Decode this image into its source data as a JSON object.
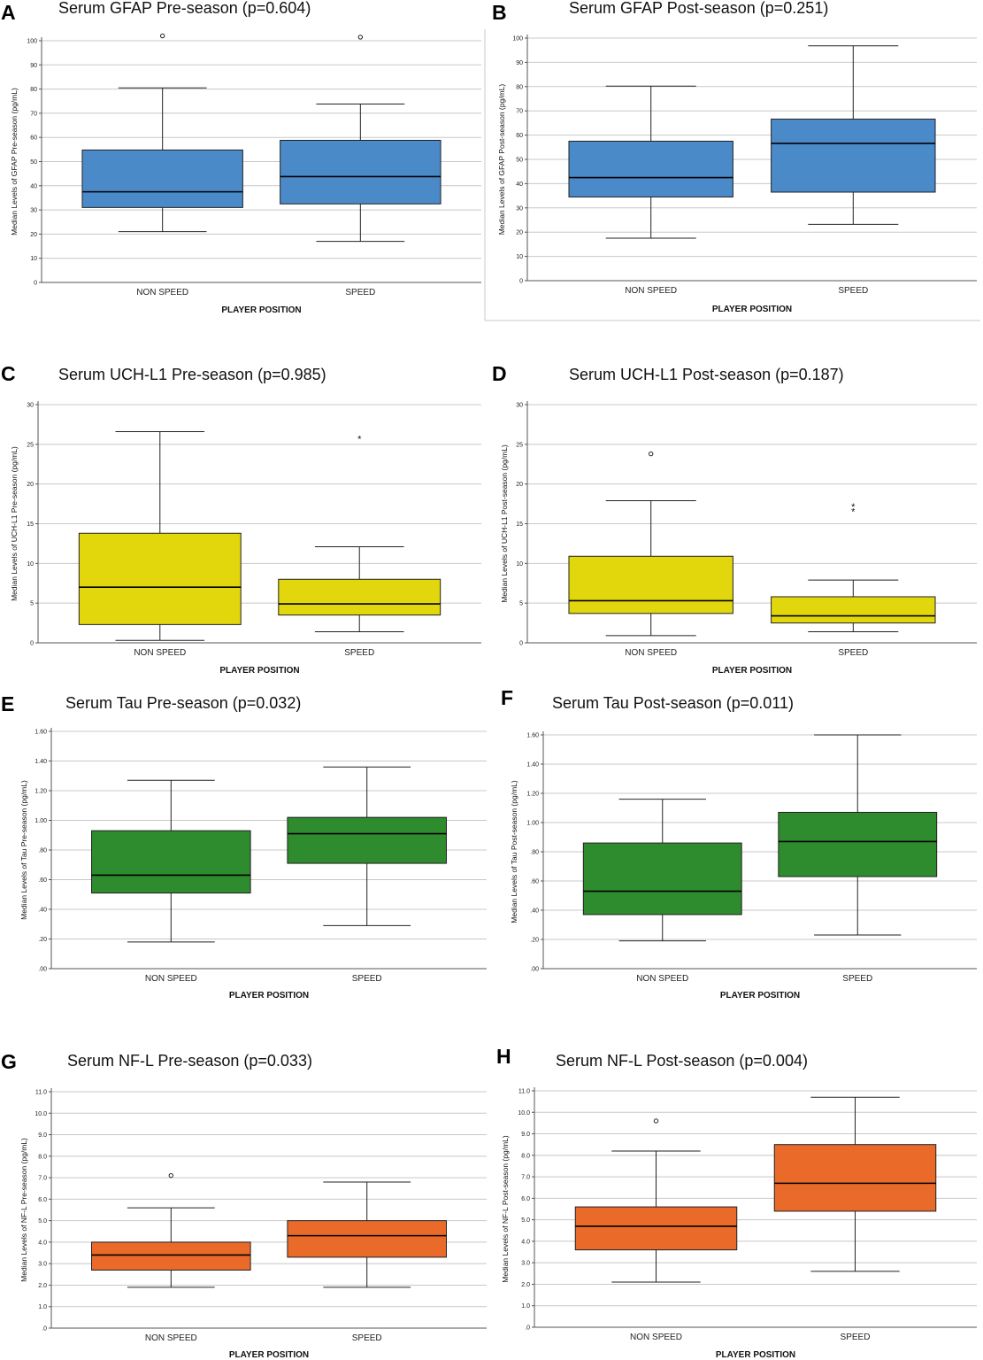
{
  "shared": {
    "categories": [
      "NON SPEED",
      "SPEED"
    ],
    "xlabel": "PLAYER POSITION"
  },
  "chart_data": [
    {
      "type": "boxplot",
      "panel": "A",
      "title": "Serum GFAP Pre-season (p=0.604)",
      "ylabel": "Median Levels of GFAP Pre-season (pg/mL)",
      "ylim": [
        0,
        100
      ],
      "yticks": [
        0,
        10,
        20,
        30,
        40,
        50,
        60,
        70,
        80,
        90,
        100
      ],
      "ytick_labels": [
        "0",
        "10",
        "20",
        "30",
        "40",
        "50",
        "60",
        "70",
        "80",
        "90",
        "100"
      ],
      "color": "#4A8AC9",
      "grid": true,
      "boxes": [
        {
          "category": "NON SPEED",
          "min": 21,
          "q1": 31,
          "median": 37.5,
          "q3": 54.8,
          "max": 80.5,
          "outliers": [
            102
          ],
          "extremes": []
        },
        {
          "category": "SPEED",
          "min": 17,
          "q1": 32.5,
          "median": 43.8,
          "q3": 58.8,
          "max": 73.8,
          "outliers": [
            101.5
          ],
          "extremes": []
        }
      ]
    },
    {
      "type": "boxplot",
      "panel": "B",
      "title": "Serum GFAP Post-season (p=0.251)",
      "ylabel": "Median Levels of GFAP Post-season (pg/mL)",
      "ylim": [
        0,
        100
      ],
      "yticks": [
        0,
        10,
        20,
        30,
        40,
        50,
        60,
        70,
        80,
        90,
        100
      ],
      "ytick_labels": [
        "0",
        "10",
        "20",
        "30",
        "40",
        "50",
        "60",
        "70",
        "80",
        "90",
        "100"
      ],
      "color": "#4A8AC9",
      "grid": true,
      "boxes": [
        {
          "category": "NON SPEED",
          "min": 17.5,
          "q1": 34.5,
          "median": 42.5,
          "q3": 57.5,
          "max": 80.2,
          "outliers": [],
          "extremes": []
        },
        {
          "category": "SPEED",
          "min": 23.2,
          "q1": 36.5,
          "median": 56.6,
          "q3": 66.6,
          "max": 96.8,
          "outliers": [],
          "extremes": []
        }
      ]
    },
    {
      "type": "boxplot",
      "panel": "C",
      "title": "Serum UCH-L1 Pre-season (p=0.985)",
      "ylabel": "Median Levels of UCH-L1 Pre-season (pg/mL)",
      "ylim": [
        0,
        30
      ],
      "yticks": [
        0,
        5,
        10,
        15,
        20,
        25,
        30
      ],
      "ytick_labels": [
        "0",
        "5",
        "10",
        "15",
        "20",
        "25",
        "30"
      ],
      "color": "#E2D70C",
      "grid": true,
      "boxes": [
        {
          "category": "NON SPEED",
          "min": 0.3,
          "q1": 2.3,
          "median": 7.0,
          "q3": 13.8,
          "max": 26.6,
          "outliers": [],
          "extremes": []
        },
        {
          "category": "SPEED",
          "min": 1.4,
          "q1": 3.5,
          "median": 4.9,
          "q3": 8.0,
          "max": 12.1,
          "outliers": [],
          "extremes": [
            25.8
          ]
        }
      ]
    },
    {
      "type": "boxplot",
      "panel": "D",
      "title": "Serum UCH-L1 Post-season (p=0.187)",
      "ylabel": "Median Levels of UCH-L1 Post-season (pg/mL)",
      "ylim": [
        0,
        30
      ],
      "yticks": [
        0,
        5,
        10,
        15,
        20,
        25,
        30
      ],
      "ytick_labels": [
        "0",
        "5",
        "10",
        "15",
        "20",
        "25",
        "30"
      ],
      "color": "#E2D70C",
      "grid": true,
      "boxes": [
        {
          "category": "NON SPEED",
          "min": 0.9,
          "q1": 3.7,
          "median": 5.3,
          "q3": 10.9,
          "max": 17.9,
          "outliers": [
            23.8
          ],
          "extremes": []
        },
        {
          "category": "SPEED",
          "min": 1.4,
          "q1": 2.5,
          "median": 3.4,
          "q3": 5.8,
          "max": 7.9,
          "outliers": [],
          "extremes": [
            17.3,
            16.7
          ]
        }
      ]
    },
    {
      "type": "boxplot",
      "panel": "E",
      "title": "Serum Tau Pre-season (p=0.032)",
      "ylabel": "Median Levels of Tau Pre-season (pg/mL)",
      "ylim": [
        0,
        1.6
      ],
      "yticks": [
        0,
        0.2,
        0.4,
        0.6,
        0.8,
        1.0,
        1.2,
        1.4,
        1.6
      ],
      "ytick_labels": [
        ".00",
        ".20",
        ".40",
        ".60",
        ".80",
        "1.00",
        "1.20",
        "1.40",
        "1.60"
      ],
      "color": "#2E8B2E",
      "grid": true,
      "boxes": [
        {
          "category": "NON SPEED",
          "min": 0.18,
          "q1": 0.51,
          "median": 0.63,
          "q3": 0.93,
          "max": 1.27,
          "outliers": [],
          "extremes": []
        },
        {
          "category": "SPEED",
          "min": 0.29,
          "q1": 0.71,
          "median": 0.91,
          "q3": 1.02,
          "max": 1.36,
          "outliers": [],
          "extremes": []
        }
      ]
    },
    {
      "type": "boxplot",
      "panel": "F",
      "title": "Serum Tau Post-season (p=0.011)",
      "ylabel": "Median Levels of Tau Post-season (pg/mL)",
      "ylim": [
        0,
        1.6
      ],
      "yticks": [
        0,
        0.2,
        0.4,
        0.6,
        0.8,
        1.0,
        1.2,
        1.4,
        1.6
      ],
      "ytick_labels": [
        ".00",
        ".20",
        ".40",
        ".60",
        ".80",
        "1.00",
        "1.20",
        "1.40",
        "1.60"
      ],
      "color": "#2E8B2E",
      "grid": true,
      "boxes": [
        {
          "category": "NON SPEED",
          "min": 0.19,
          "q1": 0.37,
          "median": 0.53,
          "q3": 0.86,
          "max": 1.16,
          "outliers": [],
          "extremes": []
        },
        {
          "category": "SPEED",
          "min": 0.23,
          "q1": 0.63,
          "median": 0.87,
          "q3": 1.07,
          "max": 1.6,
          "outliers": [],
          "extremes": []
        }
      ]
    },
    {
      "type": "boxplot",
      "panel": "G",
      "title": "Serum NF-L Pre-season (p=0.033)",
      "ylabel": "Median Levels of NF-L Pre-season (pg/mL)",
      "ylim": [
        0,
        11
      ],
      "yticks": [
        0,
        1,
        2,
        3,
        4,
        5,
        6,
        7,
        8,
        9,
        10,
        11
      ],
      "ytick_labels": [
        ".0",
        "1.0",
        "2.0",
        "3.0",
        "4.0",
        "5.0",
        "6.0",
        "7.0",
        "8.0",
        "9.0",
        "10.0",
        "11.0"
      ],
      "color": "#EA6A2A",
      "grid": true,
      "boxes": [
        {
          "category": "NON SPEED",
          "min": 1.9,
          "q1": 2.7,
          "median": 3.4,
          "q3": 4.0,
          "max": 5.6,
          "outliers": [
            7.1
          ],
          "extremes": []
        },
        {
          "category": "SPEED",
          "min": 1.9,
          "q1": 3.3,
          "median": 4.3,
          "q3": 5.0,
          "max": 6.8,
          "outliers": [],
          "extremes": []
        }
      ]
    },
    {
      "type": "boxplot",
      "panel": "H",
      "title": "Serum NF-L Post-season (p=0.004)",
      "ylabel": "Median Levels of NF-L Post-season (pg/mL)",
      "ylim": [
        0,
        11
      ],
      "yticks": [
        0,
        1,
        2,
        3,
        4,
        5,
        6,
        7,
        8,
        9,
        10,
        11
      ],
      "ytick_labels": [
        ".0",
        "1.0",
        "2.0",
        "3.0",
        "4.0",
        "5.0",
        "6.0",
        "7.0",
        "8.0",
        "9.0",
        "10.0",
        "11.0"
      ],
      "color": "#EA6A2A",
      "grid": true,
      "boxes": [
        {
          "category": "NON SPEED",
          "min": 2.1,
          "q1": 3.6,
          "median": 4.7,
          "q3": 5.6,
          "max": 8.2,
          "outliers": [
            9.6
          ],
          "extremes": []
        },
        {
          "category": "SPEED",
          "min": 2.6,
          "q1": 5.4,
          "median": 6.7,
          "q3": 8.5,
          "max": 10.7,
          "outliers": [],
          "extremes": []
        }
      ]
    }
  ]
}
